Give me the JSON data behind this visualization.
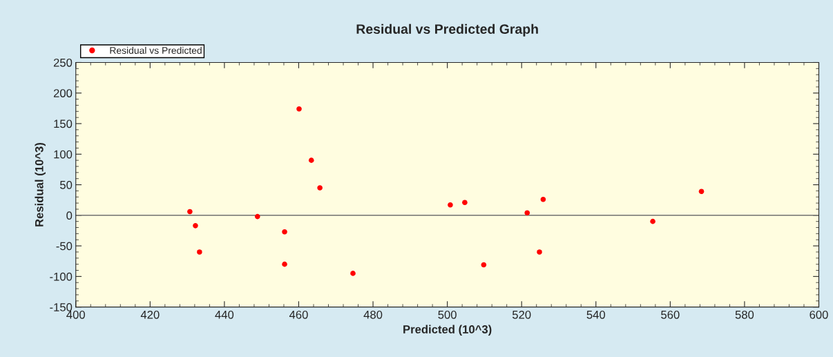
{
  "chart_data": {
    "type": "scatter",
    "title": "Residual vs Predicted Graph",
    "xlabel": "Predicted (10^3)",
    "ylabel": "Residual (10^3)",
    "series": [
      {
        "name": "Residual vs Predicted",
        "color": "#ff0000",
        "x": [
          430.7,
          432.2,
          433.3,
          448.9,
          456.2,
          456.2,
          460.1,
          463.4,
          465.7,
          474.6,
          500.8,
          504.7,
          509.8,
          521.5,
          524.8,
          525.8,
          555.3,
          568.4
        ],
        "values": [
          6,
          -17,
          -60,
          -2,
          -27,
          -80,
          174,
          90,
          45,
          -95,
          17,
          21,
          -81,
          4,
          -60,
          26,
          -10,
          39
        ]
      }
    ],
    "xlim": [
      400,
      600
    ],
    "xticks": [
      400,
      420,
      440,
      460,
      480,
      500,
      520,
      540,
      560,
      580,
      600
    ],
    "ylim": [
      -150,
      250
    ],
    "yticks": [
      -150,
      -100,
      -50,
      0,
      50,
      100,
      150,
      200,
      250
    ],
    "ref_lines": [
      {
        "axis": "y",
        "value": 0,
        "color": "#707070"
      }
    ],
    "marker": "circle",
    "grid": false,
    "legend": "top left"
  }
}
